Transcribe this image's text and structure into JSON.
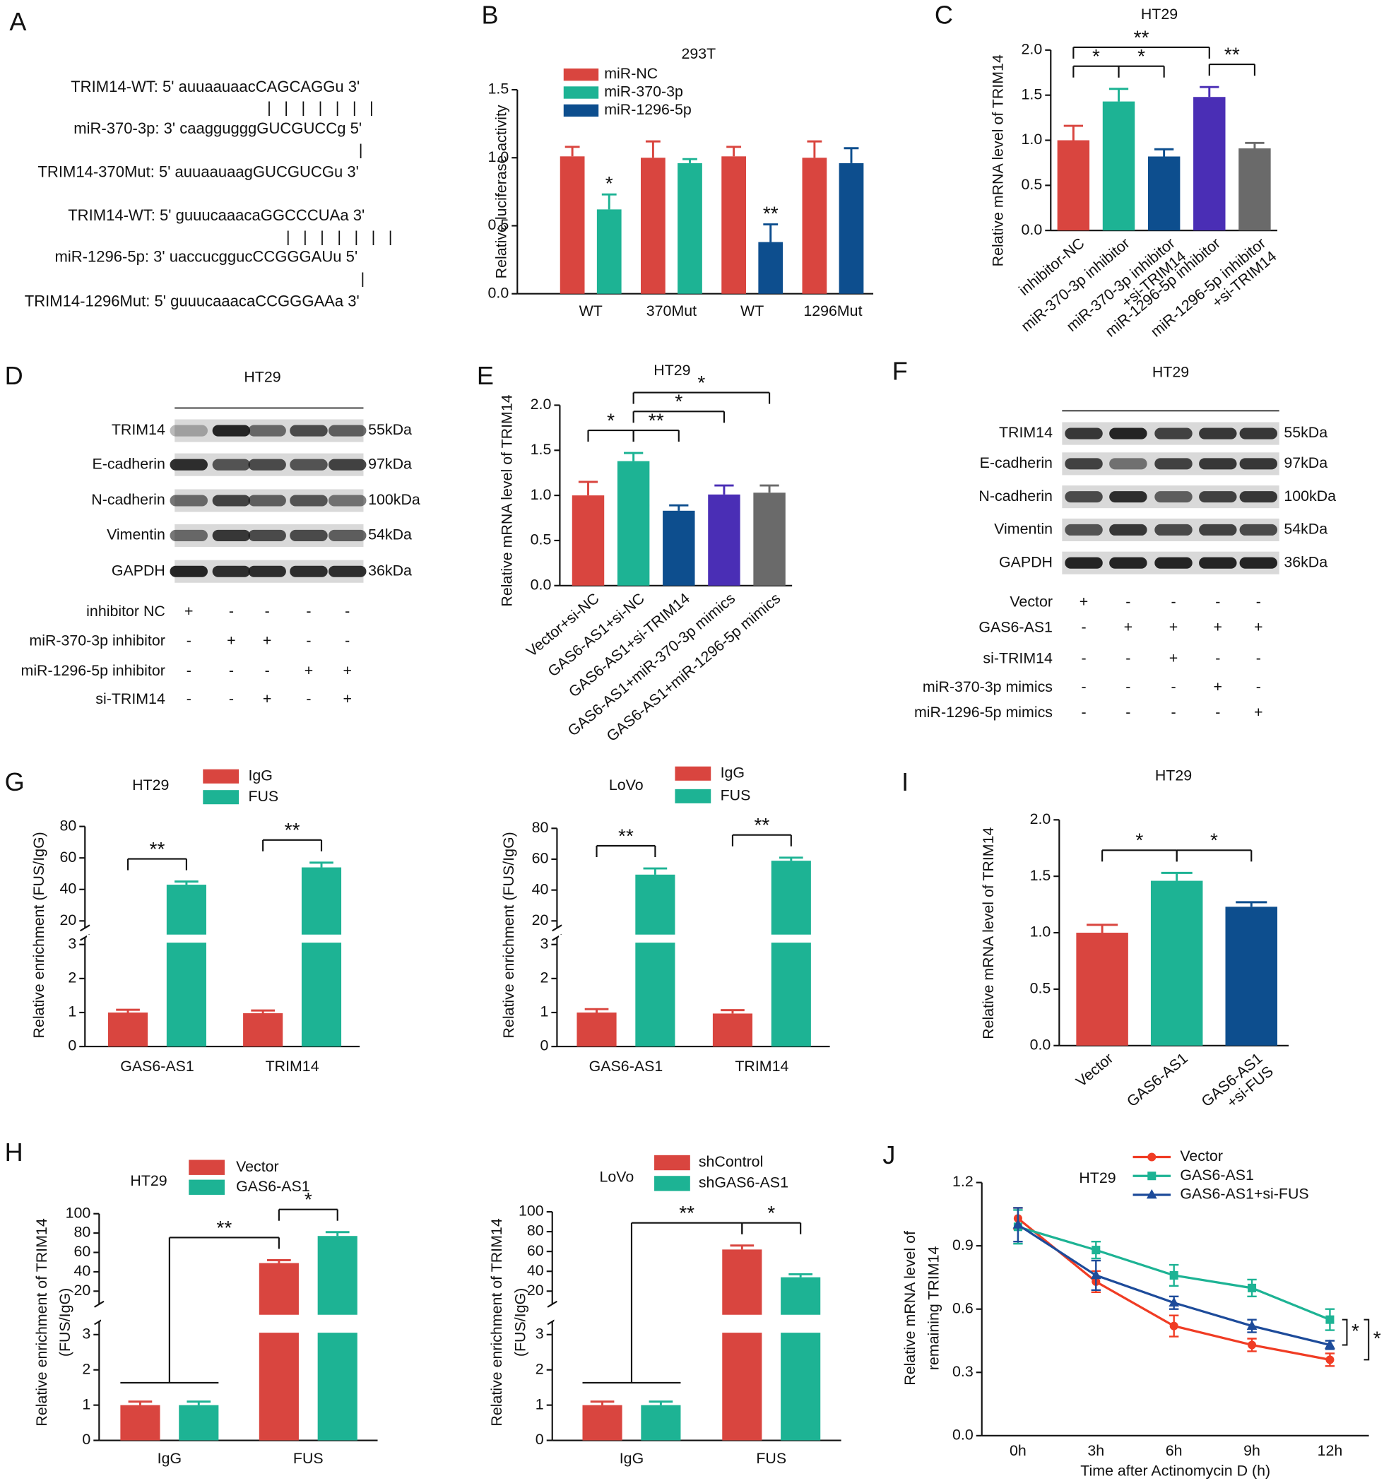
{
  "panel_labels": [
    "A",
    "B",
    "C",
    "D",
    "E",
    "F",
    "G",
    "I",
    "H",
    "J"
  ],
  "sequence_lines": [
    "TRIM14-WT: 5' auuaauaacCAGCAGGu  3'",
    "| | | | | | |",
    "miR-370-3p: 3' caaggugggGUCGUCCg 5'",
    "|",
    "TRIM14-370Mut: 5' auuaauaagGUCGUCGu 3'",
    "TRIM14-WT: 5' guuucaaacaGGCCCUAa  3'",
    "| | | | | | |",
    "miR-1296-5p: 3' uaccucggucCCGGGAUu 5'",
    "|",
    "TRIM14-1296Mut: 5' guuucaaacaCCGGGAAa 3'"
  ],
  "blots": [
    {
      "title": "HT29",
      "proteins": [
        "TRIM14",
        "E-cadherin",
        "N-cadherin",
        "Vimentin",
        "GAPDH"
      ],
      "sizes": [
        "55kDa",
        "97kDa",
        "100kDa",
        "54kDa",
        "36kDa"
      ],
      "treatments": [
        {
          "name": "inhibitor NC",
          "signs": [
            "+",
            "-",
            "-",
            "-",
            "-"
          ]
        },
        {
          "name": "miR-370-3p inhibitor",
          "signs": [
            "-",
            "+",
            "+",
            "-",
            "-"
          ]
        },
        {
          "name": "miR-1296-5p inhibitor",
          "signs": [
            "-",
            "-",
            "-",
            "+",
            "+"
          ]
        },
        {
          "name": "si-TRIM14",
          "signs": [
            "-",
            "-",
            "+",
            "-",
            "+"
          ]
        }
      ]
    },
    {
      "title": "HT29",
      "proteins": [
        "TRIM14",
        "E-cadherin",
        "N-cadherin",
        "Vimentin",
        "GAPDH"
      ],
      "sizes": [
        "55kDa",
        "97kDa",
        "100kDa",
        "54kDa",
        "36kDa"
      ],
      "treatments": [
        {
          "name": "Vector",
          "signs": [
            "+",
            "-",
            "-",
            "-",
            "-"
          ]
        },
        {
          "name": "GAS6-AS1",
          "signs": [
            "-",
            "+",
            "+",
            "+",
            "+"
          ]
        },
        {
          "name": "si-TRIM14",
          "signs": [
            "-",
            "-",
            "+",
            "-",
            "-"
          ]
        },
        {
          "name": "miR-370-3p mimics",
          "signs": [
            "-",
            "-",
            "-",
            "+",
            "-"
          ]
        },
        {
          "name": "miR-1296-5p mimics",
          "signs": [
            "-",
            "-",
            "-",
            "-",
            "+"
          ]
        }
      ]
    }
  ],
  "chart_data": [
    {
      "type": "bar",
      "title": "293T",
      "ylabel": "Relative luciferase activity",
      "categories": [
        "WT",
        "370Mut",
        "WT",
        "1296Mut"
      ],
      "series": [
        {
          "name": "miR-NC",
          "color": "#d9453f",
          "values": [
            1.01,
            1.0,
            1.01,
            1.0
          ],
          "errors": [
            0.07,
            0.12,
            0.07,
            0.12
          ]
        },
        {
          "name": "miR-370-3p",
          "color": "#1db394",
          "values": [
            0.62,
            0.96,
            null,
            null
          ],
          "errors": [
            0.11,
            0.03,
            null,
            null
          ]
        },
        {
          "name": "miR-1296-5p",
          "color": "#0d4e8e",
          "values": [
            null,
            null,
            0.38,
            0.96
          ],
          "errors": [
            null,
            null,
            0.13,
            0.11
          ]
        }
      ],
      "ylim": [
        0,
        1.5
      ],
      "yticks": [
        {
          "value": 0,
          "label": "0.0"
        },
        0.5,
        {
          "value": 1,
          "label": "1.0"
        },
        1.5
      ],
      "annotations": [
        {
          "text": "*",
          "between": [
            1
          ]
        },
        {
          "text": "**",
          "between": [
            8
          ]
        }
      ]
    },
    {
      "type": "bar",
      "title": "HT29",
      "ylabel": "Relative mRNA level of TRIM14",
      "categories": [
        "inhibitor-NC",
        "miR-370-3p inhibitor",
        [
          "miR-370-3p inhibitor",
          "+si-TRIM14"
        ],
        "miR-1296-5p inhibitor",
        [
          "miR-1296-5p inhibitor",
          "+si-TRIM14"
        ]
      ],
      "values": [
        1.0,
        1.43,
        0.82,
        1.48,
        0.91
      ],
      "errors": [
        0.16,
        0.14,
        0.08,
        0.11,
        0.06
      ],
      "colors": [
        "#d9453f",
        "#1db394",
        "#0d4e8e",
        "#4a2eb5",
        "#6a6a6a"
      ],
      "ylim": [
        0,
        2.0
      ],
      "yticks": [
        {
          "value": 0,
          "label": "0.0"
        },
        0.5,
        {
          "value": 1,
          "label": "1.0"
        },
        1.5,
        {
          "value": 2,
          "label": "2.0"
        }
      ],
      "annotations": [
        {
          "text": "*",
          "between": [
            0,
            1
          ]
        },
        {
          "text": "*",
          "between": [
            1,
            2
          ]
        },
        {
          "text": "**",
          "between": [
            3,
            4
          ]
        },
        {
          "text": "**",
          "between": [
            0,
            3
          ]
        }
      ]
    },
    {
      "type": "bar",
      "title": "HT29",
      "ylabel": "Relative mRNA level of TRIM14",
      "categories": [
        "Vector+si-NC",
        "GAS6-AS1+si-NC",
        "GAS6-AS1+si-TRIM14",
        "GAS6-AS1+miR-370-3p mimics",
        "GAS6-AS1+miR-1296-5p mimics"
      ],
      "values": [
        1.0,
        1.38,
        0.83,
        1.01,
        1.03
      ],
      "errors": [
        0.15,
        0.09,
        0.06,
        0.1,
        0.08
      ],
      "colors": [
        "#d9453f",
        "#1db394",
        "#0d4e8e",
        "#4a2eb5",
        "#6a6a6a"
      ],
      "ylim": [
        0,
        2.0
      ],
      "yticks": [
        {
          "value": 0,
          "label": "0.0"
        },
        0.5,
        {
          "value": 1,
          "label": "1.0"
        },
        1.5,
        {
          "value": 2,
          "label": "2.0"
        }
      ],
      "annotations": [
        {
          "text": "*",
          "between": [
            0,
            1
          ]
        },
        {
          "text": "**",
          "between": [
            1,
            2
          ]
        },
        {
          "text": "*",
          "between": [
            1,
            3
          ]
        },
        {
          "text": "*",
          "between": [
            1,
            4
          ]
        }
      ]
    },
    {
      "type": "bar",
      "title": "HT29",
      "ylabel": "Relative enrichment (FUS/IgG)",
      "categories": [
        "GAS6-AS1",
        "TRIM14"
      ],
      "series": [
        {
          "name": "IgG",
          "color": "#d9453f",
          "values": [
            1.0,
            0.98
          ],
          "errors": [
            0.08,
            0.08
          ]
        },
        {
          "name": "FUS",
          "color": "#1db394",
          "values": [
            43,
            54
          ],
          "errors": [
            2,
            3
          ]
        }
      ],
      "ylim": [
        0,
        80
      ],
      "axis_break": [
        3,
        20
      ],
      "yticks": [
        0,
        1,
        2,
        3,
        20,
        40,
        60,
        80
      ],
      "annotations": [
        {
          "text": "**",
          "between": [
            0,
            1
          ]
        },
        {
          "text": "**",
          "between": [
            2,
            3
          ]
        }
      ]
    },
    {
      "type": "bar",
      "title": "LoVo",
      "ylabel": "Relative enrichment (FUS/IgG)",
      "categories": [
        "GAS6-AS1",
        "TRIM14"
      ],
      "series": [
        {
          "name": "IgG",
          "color": "#d9453f",
          "values": [
            1.0,
            0.97
          ],
          "errors": [
            0.1,
            0.1
          ]
        },
        {
          "name": "FUS",
          "color": "#1db394",
          "values": [
            50,
            59
          ],
          "errors": [
            4,
            2
          ]
        }
      ],
      "ylim": [
        0,
        80
      ],
      "axis_break": [
        3,
        20
      ],
      "yticks": [
        0,
        1,
        2,
        3,
        20,
        40,
        60,
        80
      ],
      "annotations": [
        {
          "text": "**",
          "between": [
            0,
            1
          ]
        },
        {
          "text": "**",
          "between": [
            2,
            3
          ]
        }
      ]
    },
    {
      "type": "bar",
      "title": "HT29",
      "ylabel": "Relative mRNA level of TRIM14",
      "categories": [
        "Vector",
        "GAS6-AS1",
        [
          "GAS6-AS1",
          "+si-FUS"
        ]
      ],
      "values": [
        1.0,
        1.46,
        1.23
      ],
      "errors": [
        0.07,
        0.07,
        0.04
      ],
      "colors": [
        "#d9453f",
        "#1db394",
        "#0d4e8e"
      ],
      "ylim": [
        0,
        2.0
      ],
      "yticks": [
        {
          "value": 0,
          "label": "0.0"
        },
        0.5,
        {
          "value": 1,
          "label": "1.0"
        },
        1.5,
        {
          "value": 2,
          "label": "2.0"
        }
      ],
      "annotations": [
        {
          "text": "*",
          "between": [
            0,
            1
          ]
        },
        {
          "text": "*",
          "between": [
            1,
            2
          ]
        }
      ]
    },
    {
      "type": "bar",
      "title": "HT29",
      "ylabel": [
        "Relative enrichment of TRIM14",
        "(FUS/IgG)"
      ],
      "categories": [
        "IgG",
        "FUS"
      ],
      "series": [
        {
          "name": "Vector",
          "color": "#d9453f",
          "values": [
            1.0,
            49
          ],
          "errors": [
            0.1,
            3
          ]
        },
        {
          "name": "GAS6-AS1",
          "color": "#1db394",
          "values": [
            1.0,
            77
          ],
          "errors": [
            0.1,
            4
          ]
        }
      ],
      "ylim": [
        0,
        100
      ],
      "axis_break": [
        3,
        20
      ],
      "yticks": [
        0,
        1,
        2,
        3,
        20,
        40,
        60,
        80,
        100
      ],
      "annotations": [
        {
          "text": "*",
          "between": [
            2,
            3
          ]
        },
        {
          "text": "**",
          "between": [
            [
              0,
              1
            ],
            2
          ]
        }
      ]
    },
    {
      "type": "bar",
      "title": "LoVo",
      "ylabel": [
        "Relative enrichment of TRIM14",
        "(FUS/IgG)"
      ],
      "categories": [
        "IgG",
        "FUS"
      ],
      "series": [
        {
          "name": "shControl",
          "color": "#d9453f",
          "values": [
            1.0,
            62
          ],
          "errors": [
            0.1,
            4
          ]
        },
        {
          "name": "shGAS6-AS1",
          "color": "#1db394",
          "values": [
            1.0,
            34
          ],
          "errors": [
            0.1,
            3
          ]
        }
      ],
      "ylim": [
        0,
        100
      ],
      "axis_break": [
        3,
        20
      ],
      "yticks": [
        0,
        1,
        2,
        3,
        20,
        40,
        60,
        80,
        100
      ],
      "annotations": [
        {
          "text": "*",
          "between": [
            2,
            3
          ]
        },
        {
          "text": "**",
          "between": [
            [
              0,
              1
            ],
            2
          ]
        }
      ]
    },
    {
      "type": "line",
      "title": "HT29",
      "ylabel": [
        "Relative mRNA level of",
        "remaining TRIM14"
      ],
      "xlabel": "Time after Actinomycin D (h)",
      "categories": [
        "0h",
        "3h",
        "6h",
        "9h",
        "12h"
      ],
      "series": [
        {
          "name": "Vector",
          "color": "#f03c24",
          "marker": "circle",
          "values": [
            1.03,
            0.73,
            0.52,
            0.43,
            0.36
          ],
          "errors": [
            0.05,
            0.05,
            0.05,
            0.03,
            0.03
          ]
        },
        {
          "name": "GAS6-AS1",
          "color": "#1db394",
          "marker": "square",
          "values": [
            0.99,
            0.88,
            0.76,
            0.7,
            0.55
          ],
          "errors": [
            0.08,
            0.04,
            0.05,
            0.04,
            0.05
          ]
        },
        {
          "name": "GAS6-AS1+si-FUS",
          "color": "#1d4b9a",
          "marker": "triangle",
          "values": [
            1.0,
            0.76,
            0.63,
            0.52,
            0.43
          ],
          "errors": [
            0.08,
            0.07,
            0.03,
            0.03,
            0.02
          ]
        }
      ],
      "ylim": [
        0,
        1.2
      ],
      "yticks": [
        {
          "value": 0,
          "label": "0.0"
        },
        0.3,
        0.6,
        0.9,
        1.2
      ],
      "annotations": [
        {
          "text": "*",
          "between": [
            1,
            2
          ]
        },
        {
          "text": "*",
          "between": [
            1,
            0
          ]
        }
      ]
    }
  ]
}
